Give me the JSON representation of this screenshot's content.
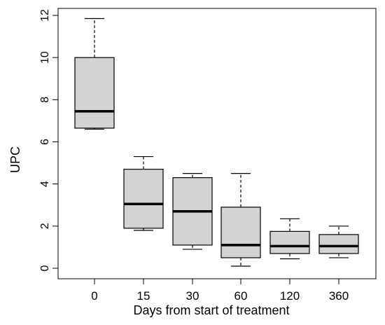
{
  "chart_data": {
    "type": "box",
    "title": "",
    "xlabel": "Days from start of treatment",
    "ylabel": "UPC",
    "ylim": [
      0,
      12
    ],
    "yticks": [
      0,
      2,
      4,
      6,
      8,
      10,
      12
    ],
    "categories": [
      "0",
      "15",
      "30",
      "60",
      "120",
      "360"
    ],
    "boxes": [
      {
        "category": "0",
        "whisker_low": 6.6,
        "q1": 6.65,
        "median": 7.45,
        "q3": 10.0,
        "whisker_high": 11.85
      },
      {
        "category": "15",
        "whisker_low": 1.8,
        "q1": 1.9,
        "median": 3.05,
        "q3": 4.7,
        "whisker_high": 5.3
      },
      {
        "category": "30",
        "whisker_low": 0.9,
        "q1": 1.1,
        "median": 2.7,
        "q3": 4.3,
        "whisker_high": 4.5
      },
      {
        "category": "60",
        "whisker_low": 0.1,
        "q1": 0.5,
        "median": 1.1,
        "q3": 2.9,
        "whisker_high": 4.5
      },
      {
        "category": "120",
        "whisker_low": 0.45,
        "q1": 0.7,
        "median": 1.05,
        "q3": 1.75,
        "whisker_high": 2.35
      },
      {
        "category": "360",
        "whisker_low": 0.5,
        "q1": 0.7,
        "median": 1.05,
        "q3": 1.6,
        "whisker_high": 2.0
      }
    ],
    "colors": {
      "box_fill": "#d3d3d3",
      "stroke": "#000000",
      "median": "#000000"
    },
    "grid": false,
    "legend": "none"
  }
}
